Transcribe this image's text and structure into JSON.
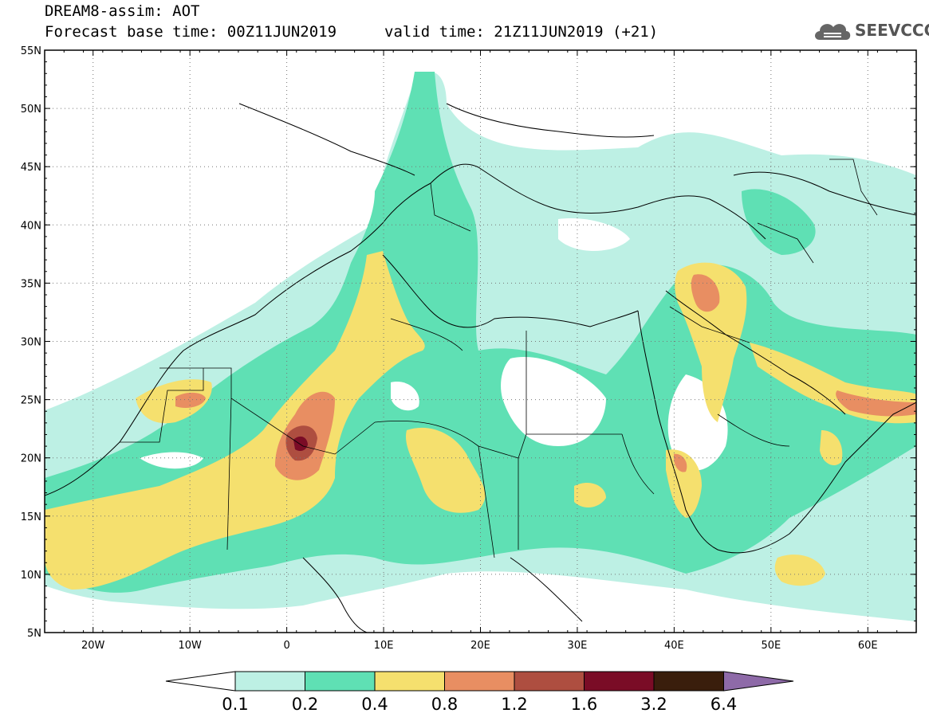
{
  "header": {
    "line1": "DREAM8-assim: AOT",
    "line2": "Forecast base time: 00Z11JUN2019",
    "valid": "valid time: 21Z11JUN2019 (+21)"
  },
  "logo": {
    "text": "SEEVCCC",
    "icon": "cloud-icon"
  },
  "map": {
    "lon_range": [
      -25,
      65
    ],
    "lat_range": [
      5,
      55
    ],
    "lat_labels": [
      "5N",
      "10N",
      "15N",
      "20N",
      "25N",
      "30N",
      "35N",
      "40N",
      "45N",
      "50N",
      "55N"
    ],
    "lon_labels": [
      "20W",
      "10W",
      "0",
      "10E",
      "20E",
      "30E",
      "40E",
      "50E",
      "60E"
    ],
    "grid": "dotted"
  },
  "colorbar": {
    "labels": [
      "0.1",
      "0.2",
      "0.4",
      "0.8",
      "1.2",
      "1.6",
      "3.2",
      "6.4"
    ],
    "colors": [
      "#ffffff",
      "#bdf0e4",
      "#5fe0b4",
      "#f5e06e",
      "#e88e62",
      "#ae4e40",
      "#7a0c26",
      "#3a1e0c",
      "#8e6aa8"
    ]
  }
}
